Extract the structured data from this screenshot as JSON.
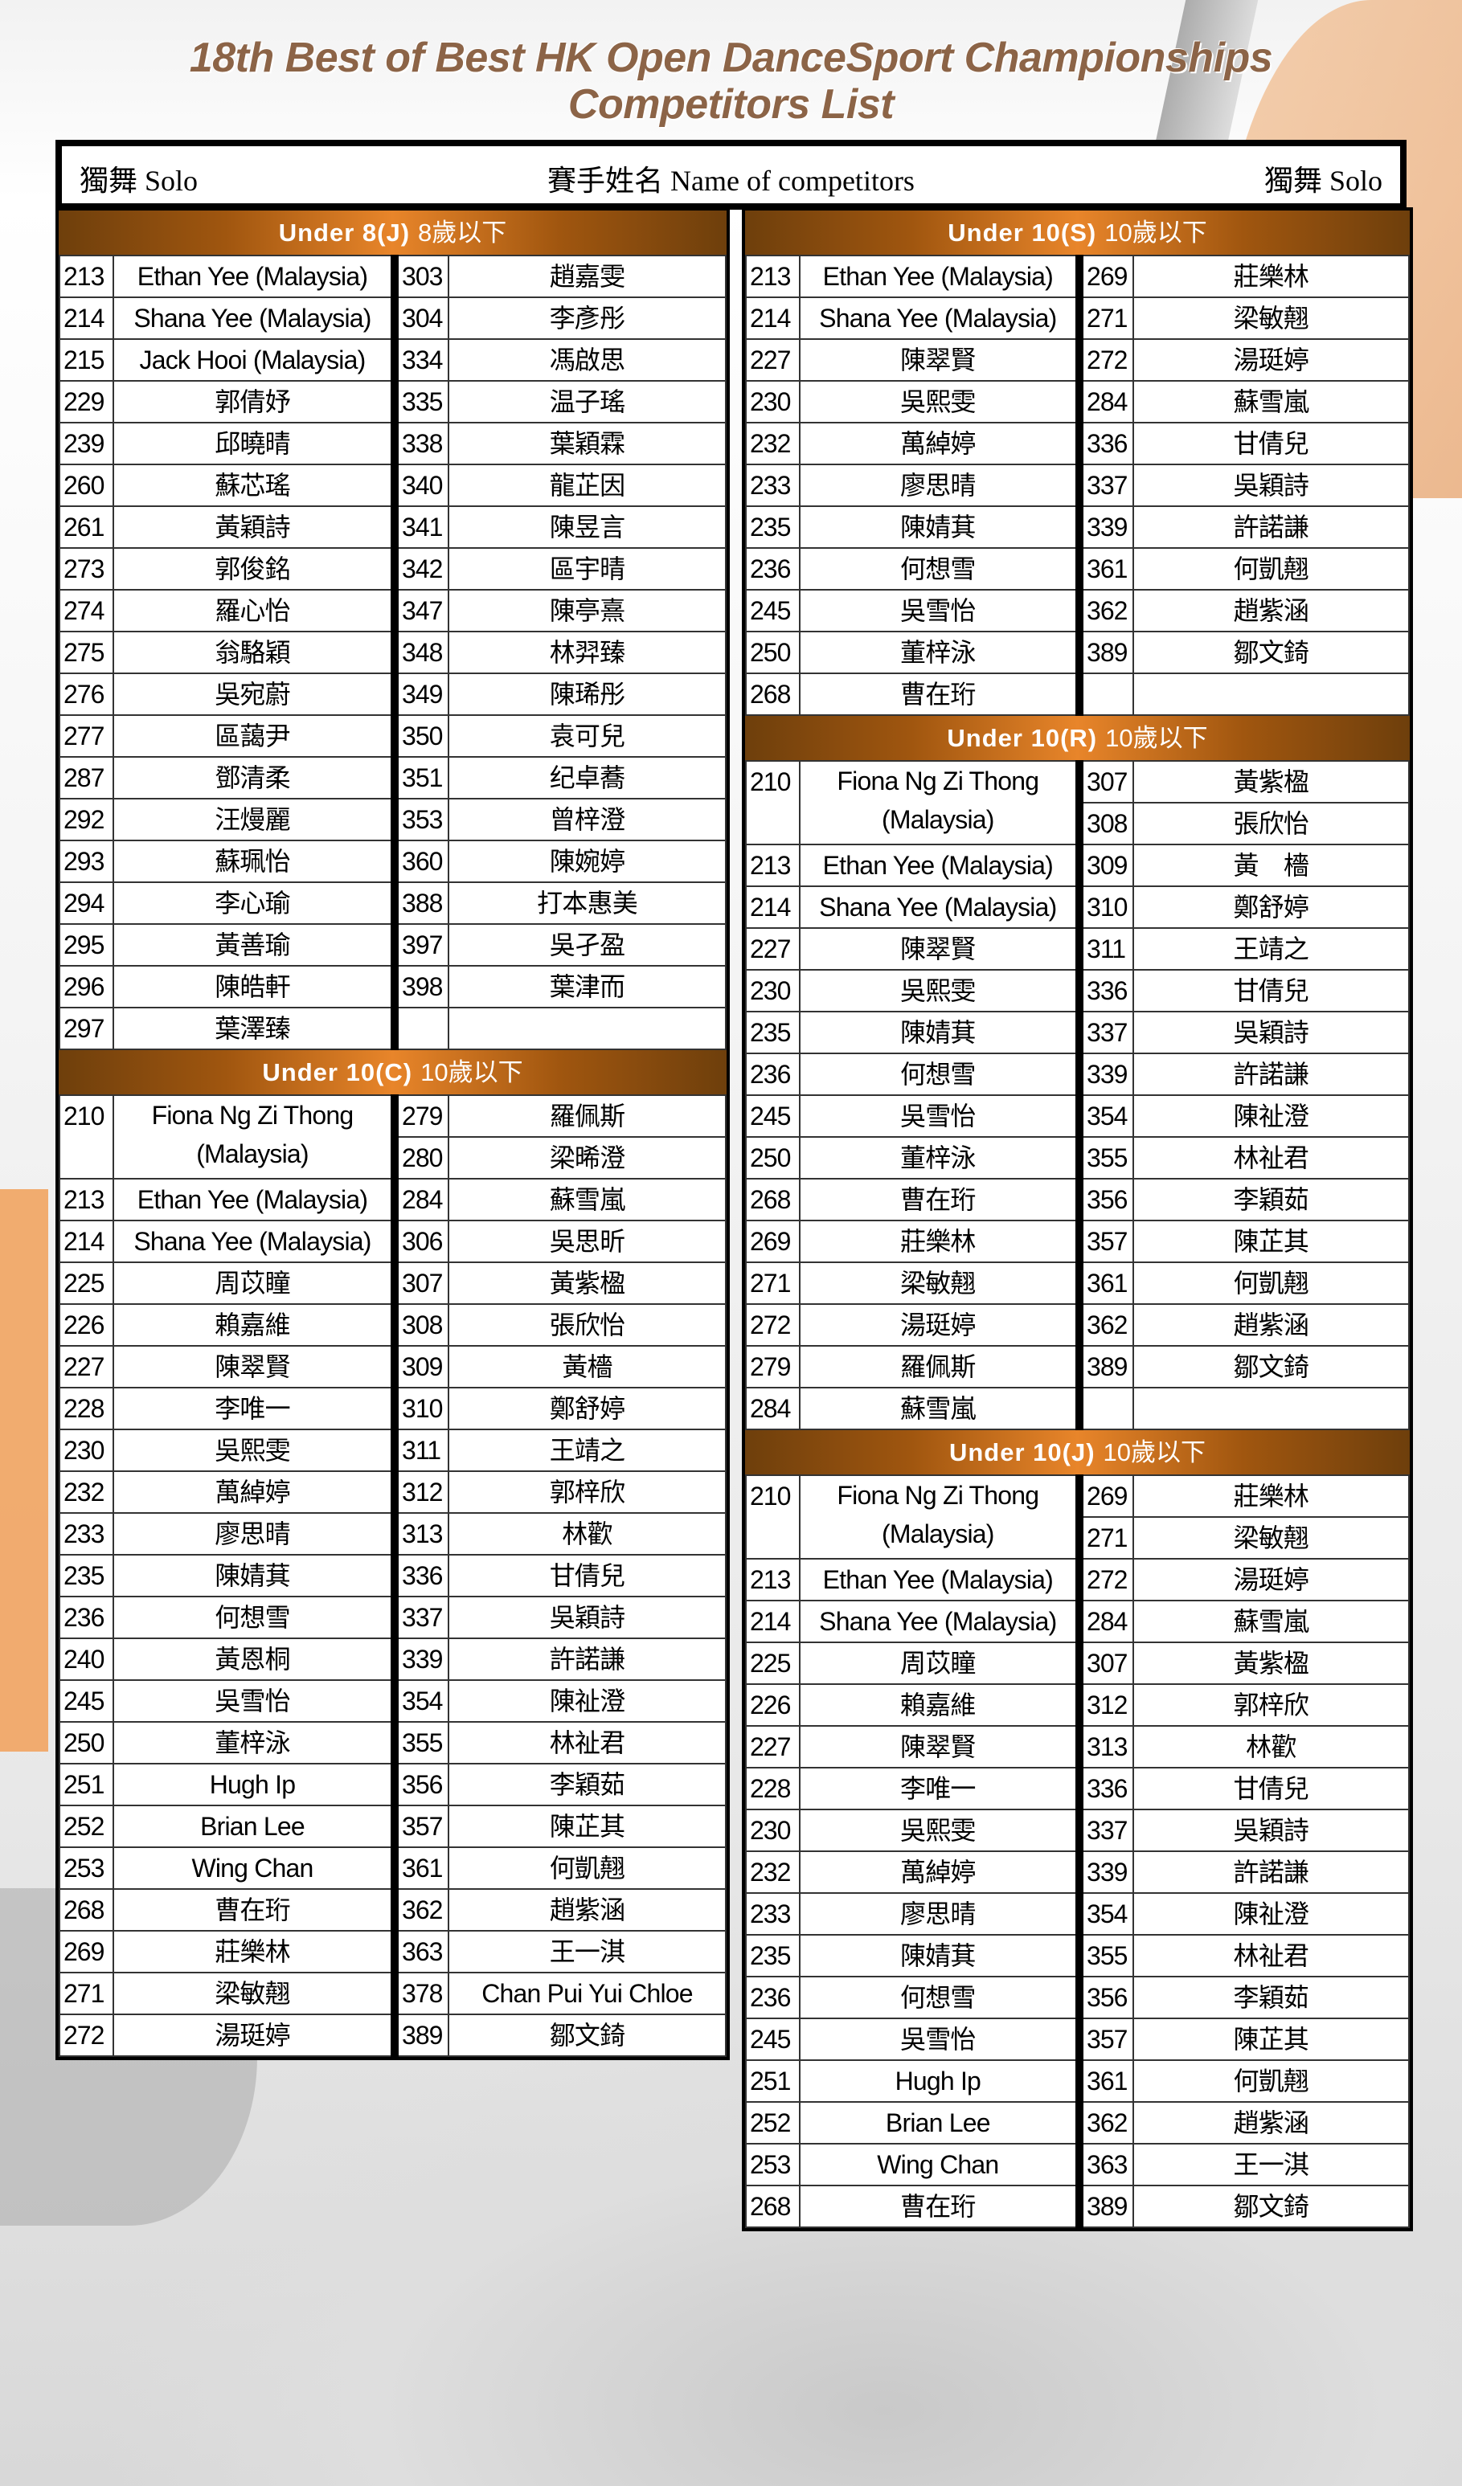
{
  "title": {
    "line1": "18th Best of Best HK Open DanceSport Championships",
    "line2": "Competitors List"
  },
  "header": {
    "left": "獨舞 Solo",
    "center": "賽手姓名 Name of competitors",
    "right": "獨舞 Solo"
  },
  "colors": {
    "title": "#8c6447",
    "section_bar": "#e8852a",
    "border": "#000000"
  },
  "sections": [
    {
      "title_en": "Under 8(J)",
      "title_zh": "8歲以下",
      "panel": "left",
      "left": [
        {
          "num": "213",
          "name": "Ethan Yee (Malaysia)"
        },
        {
          "num": "214",
          "name": "Shana Yee (Malaysia)"
        },
        {
          "num": "215",
          "name": "Jack Hooi (Malaysia)"
        },
        {
          "num": "229",
          "name": "郭倩妤"
        },
        {
          "num": "239",
          "name": "邱曉晴"
        },
        {
          "num": "260",
          "name": "蘇芯瑤"
        },
        {
          "num": "261",
          "name": "黃穎詩"
        },
        {
          "num": "273",
          "name": "郭俊銘"
        },
        {
          "num": "274",
          "name": "羅心怡"
        },
        {
          "num": "275",
          "name": "翁駱穎"
        },
        {
          "num": "276",
          "name": "吳宛蔚"
        },
        {
          "num": "277",
          "name": "區藹尹"
        },
        {
          "num": "287",
          "name": "鄧清柔"
        },
        {
          "num": "292",
          "name": "汪熳麗"
        },
        {
          "num": "293",
          "name": "蘇珮怡"
        },
        {
          "num": "294",
          "name": "李心瑜"
        },
        {
          "num": "295",
          "name": "黃善瑜"
        },
        {
          "num": "296",
          "name": "陳皓軒"
        },
        {
          "num": "297",
          "name": "葉澤臻"
        }
      ],
      "right": [
        {
          "num": "303",
          "name": "趙嘉雯"
        },
        {
          "num": "304",
          "name": "李彥彤"
        },
        {
          "num": "334",
          "name": "馮啟思"
        },
        {
          "num": "335",
          "name": "温子瑤"
        },
        {
          "num": "338",
          "name": "葉穎霖"
        },
        {
          "num": "340",
          "name": "龍芷因"
        },
        {
          "num": "341",
          "name": "陳昱言"
        },
        {
          "num": "342",
          "name": "區宇晴"
        },
        {
          "num": "347",
          "name": "陳亭熹"
        },
        {
          "num": "348",
          "name": "林羿臻"
        },
        {
          "num": "349",
          "name": "陳琋彤"
        },
        {
          "num": "350",
          "name": "袁可兒"
        },
        {
          "num": "351",
          "name": "纪卓蕎"
        },
        {
          "num": "353",
          "name": "曾梓澄"
        },
        {
          "num": "360",
          "name": "陳婉婷"
        },
        {
          "num": "388",
          "name": "打本惠美"
        },
        {
          "num": "397",
          "name": "吳孑盈"
        },
        {
          "num": "398",
          "name": "葉津而"
        }
      ]
    },
    {
      "title_en": "Under 10(C)",
      "title_zh": "10歲以下",
      "panel": "left",
      "left": [
        {
          "num": "210",
          "name": "Fiona Ng Zi Thong (Malaysia)",
          "span": 2
        },
        {
          "num": "213",
          "name": "Ethan Yee (Malaysia)"
        },
        {
          "num": "214",
          "name": "Shana Yee (Malaysia)"
        },
        {
          "num": "225",
          "name": "周苡瞳"
        },
        {
          "num": "226",
          "name": "賴嘉維"
        },
        {
          "num": "227",
          "name": "陳翠賢"
        },
        {
          "num": "228",
          "name": "李唯一"
        },
        {
          "num": "230",
          "name": "吳熙雯"
        },
        {
          "num": "232",
          "name": "萬綽婷"
        },
        {
          "num": "233",
          "name": "廖思晴"
        },
        {
          "num": "235",
          "name": "陳婧萁"
        },
        {
          "num": "236",
          "name": "何想雪"
        },
        {
          "num": "240",
          "name": "黃恩桐"
        },
        {
          "num": "245",
          "name": "吳雪怡"
        },
        {
          "num": "250",
          "name": "董梓泳"
        },
        {
          "num": "251",
          "name": "Hugh Ip"
        },
        {
          "num": "252",
          "name": "Brian Lee"
        },
        {
          "num": "253",
          "name": "Wing Chan"
        },
        {
          "num": "268",
          "name": "曹在珩"
        },
        {
          "num": "269",
          "name": "莊樂林"
        },
        {
          "num": "271",
          "name": "梁敏翹"
        },
        {
          "num": "272",
          "name": "湯珽婷"
        }
      ],
      "right": [
        {
          "num": "279",
          "name": "羅佩斯"
        },
        {
          "num": "280",
          "name": "梁晞澄"
        },
        {
          "num": "284",
          "name": "蘇雪嵐"
        },
        {
          "num": "306",
          "name": "吳思昕"
        },
        {
          "num": "307",
          "name": "黃紫楹"
        },
        {
          "num": "308",
          "name": "張欣怡"
        },
        {
          "num": "309",
          "name": "黃檣"
        },
        {
          "num": "310",
          "name": "鄭舒婷"
        },
        {
          "num": "311",
          "name": "王靖之"
        },
        {
          "num": "312",
          "name": "郭梓欣"
        },
        {
          "num": "313",
          "name": "林歡"
        },
        {
          "num": "336",
          "name": "甘倩兒"
        },
        {
          "num": "337",
          "name": "吳穎詩"
        },
        {
          "num": "339",
          "name": "許諾謙"
        },
        {
          "num": "354",
          "name": "陳祉澄"
        },
        {
          "num": "355",
          "name": "林祉君"
        },
        {
          "num": "356",
          "name": "李穎茹"
        },
        {
          "num": "357",
          "name": "陳芷其"
        },
        {
          "num": "361",
          "name": "何凱翹"
        },
        {
          "num": "362",
          "name": "趙紫涵"
        },
        {
          "num": "363",
          "name": "王一淇"
        },
        {
          "num": "378",
          "name": "Chan Pui Yui Chloe"
        },
        {
          "num": "389",
          "name": "鄒文錡"
        }
      ]
    },
    {
      "title_en": "Under 10(S)",
      "title_zh": "10歲以下",
      "panel": "right",
      "left": [
        {
          "num": "213",
          "name": "Ethan Yee (Malaysia)"
        },
        {
          "num": "214",
          "name": "Shana Yee (Malaysia)"
        },
        {
          "num": "227",
          "name": "陳翠賢"
        },
        {
          "num": "230",
          "name": "吳熙雯"
        },
        {
          "num": "232",
          "name": "萬綽婷"
        },
        {
          "num": "233",
          "name": "廖思晴"
        },
        {
          "num": "235",
          "name": "陳婧萁"
        },
        {
          "num": "236",
          "name": "何想雪"
        },
        {
          "num": "245",
          "name": "吳雪怡"
        },
        {
          "num": "250",
          "name": "董梓泳"
        },
        {
          "num": "268",
          "name": "曹在珩"
        }
      ],
      "right": [
        {
          "num": "269",
          "name": "莊樂林"
        },
        {
          "num": "271",
          "name": "梁敏翹"
        },
        {
          "num": "272",
          "name": "湯珽婷"
        },
        {
          "num": "284",
          "name": "蘇雪嵐"
        },
        {
          "num": "336",
          "name": "甘倩兒"
        },
        {
          "num": "337",
          "name": "吳穎詩"
        },
        {
          "num": "339",
          "name": "許諾謙"
        },
        {
          "num": "361",
          "name": "何凱翹"
        },
        {
          "num": "362",
          "name": "趙紫涵"
        },
        {
          "num": "389",
          "name": "鄒文錡"
        }
      ]
    },
    {
      "title_en": "Under 10(R)",
      "title_zh": "10歲以下",
      "panel": "right",
      "left": [
        {
          "num": "210",
          "name": "Fiona Ng Zi Thong (Malaysia)",
          "span": 2
        },
        {
          "num": "213",
          "name": "Ethan Yee (Malaysia)"
        },
        {
          "num": "214",
          "name": "Shana Yee (Malaysia)"
        },
        {
          "num": "227",
          "name": "陳翠賢"
        },
        {
          "num": "230",
          "name": "吳熙雯"
        },
        {
          "num": "235",
          "name": "陳婧萁"
        },
        {
          "num": "236",
          "name": "何想雪"
        },
        {
          "num": "245",
          "name": "吳雪怡"
        },
        {
          "num": "250",
          "name": "董梓泳"
        },
        {
          "num": "268",
          "name": "曹在珩"
        },
        {
          "num": "269",
          "name": "莊樂林"
        },
        {
          "num": "271",
          "name": "梁敏翹"
        },
        {
          "num": "272",
          "name": "湯珽婷"
        },
        {
          "num": "279",
          "name": "羅佩斯"
        },
        {
          "num": "284",
          "name": "蘇雪嵐"
        }
      ],
      "right": [
        {
          "num": "307",
          "name": "黃紫楹"
        },
        {
          "num": "308",
          "name": "張欣怡"
        },
        {
          "num": "309",
          "name": "黃　檣"
        },
        {
          "num": "310",
          "name": "鄭舒婷"
        },
        {
          "num": "311",
          "name": "王靖之"
        },
        {
          "num": "336",
          "name": "甘倩兒"
        },
        {
          "num": "337",
          "name": "吳穎詩"
        },
        {
          "num": "339",
          "name": "許諾謙"
        },
        {
          "num": "354",
          "name": "陳祉澄"
        },
        {
          "num": "355",
          "name": "林祉君"
        },
        {
          "num": "356",
          "name": "李穎茹"
        },
        {
          "num": "357",
          "name": "陳芷其"
        },
        {
          "num": "361",
          "name": "何凱翹"
        },
        {
          "num": "362",
          "name": "趙紫涵"
        },
        {
          "num": "389",
          "name": "鄒文錡"
        }
      ]
    },
    {
      "title_en": "Under 10(J)",
      "title_zh": "10歲以下",
      "panel": "right",
      "left": [
        {
          "num": "210",
          "name": "Fiona Ng Zi Thong (Malaysia)",
          "span": 2
        },
        {
          "num": "213",
          "name": "Ethan Yee (Malaysia)"
        },
        {
          "num": "214",
          "name": "Shana Yee (Malaysia)"
        },
        {
          "num": "225",
          "name": "周苡瞳"
        },
        {
          "num": "226",
          "name": "賴嘉維"
        },
        {
          "num": "227",
          "name": "陳翠賢"
        },
        {
          "num": "228",
          "name": "李唯一"
        },
        {
          "num": "230",
          "name": "吳熙雯"
        },
        {
          "num": "232",
          "name": "萬綽婷"
        },
        {
          "num": "233",
          "name": "廖思晴"
        },
        {
          "num": "235",
          "name": "陳婧萁"
        },
        {
          "num": "236",
          "name": "何想雪"
        },
        {
          "num": "245",
          "name": "吳雪怡"
        },
        {
          "num": "251",
          "name": "Hugh Ip"
        },
        {
          "num": "252",
          "name": "Brian Lee"
        },
        {
          "num": "253",
          "name": "Wing Chan"
        },
        {
          "num": "268",
          "name": "曹在珩"
        }
      ],
      "right": [
        {
          "num": "269",
          "name": "莊樂林"
        },
        {
          "num": "271",
          "name": "梁敏翹"
        },
        {
          "num": "272",
          "name": "湯珽婷"
        },
        {
          "num": "284",
          "name": "蘇雪嵐"
        },
        {
          "num": "307",
          "name": "黃紫楹"
        },
        {
          "num": "312",
          "name": "郭梓欣"
        },
        {
          "num": "313",
          "name": "林歡"
        },
        {
          "num": "336",
          "name": "甘倩兒"
        },
        {
          "num": "337",
          "name": "吳穎詩"
        },
        {
          "num": "339",
          "name": "許諾謙"
        },
        {
          "num": "354",
          "name": "陳祉澄"
        },
        {
          "num": "355",
          "name": "林祉君"
        },
        {
          "num": "356",
          "name": "李穎茹"
        },
        {
          "num": "357",
          "name": "陳芷其"
        },
        {
          "num": "361",
          "name": "何凱翹"
        },
        {
          "num": "362",
          "name": "趙紫涵"
        },
        {
          "num": "363",
          "name": "王一淇"
        },
        {
          "num": "389",
          "name": "鄒文錡"
        }
      ]
    }
  ]
}
